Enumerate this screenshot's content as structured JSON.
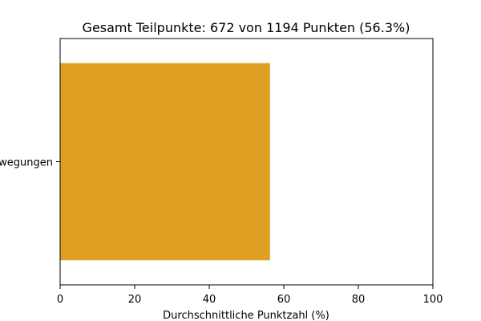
{
  "chart_data": {
    "type": "bar",
    "orientation": "horizontal",
    "title": "Gesamt Teilpunkte: 672 von 1194 Punkten (56.3%)",
    "xlabel": "Durchschnittliche Punktzahl (%)",
    "ylabel": "",
    "categories": [
      "Bewegungen"
    ],
    "values": [
      56.3
    ],
    "xlim": [
      0,
      100
    ],
    "xticks": [
      0,
      20,
      40,
      60,
      80,
      100
    ],
    "grid": false,
    "legend": "none",
    "colors": {
      "bar": "#df9f22",
      "axis": "#000000",
      "background": "#ffffff"
    }
  }
}
